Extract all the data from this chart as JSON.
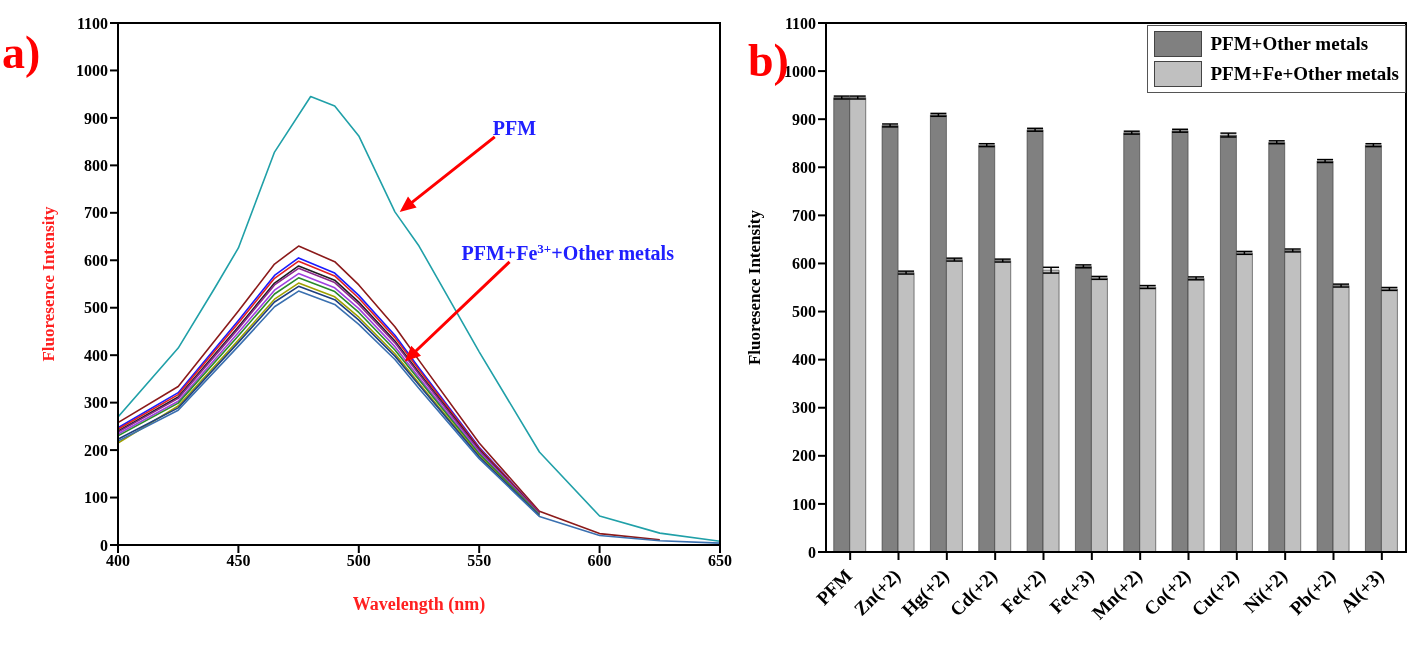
{
  "chart_data": [
    {
      "type": "line",
      "title": "a)",
      "xlabel": "Wavelength (nm)",
      "ylabel": "Fluoresence Intensity",
      "xlim": [
        400,
        650
      ],
      "xticks": [
        400,
        450,
        500,
        550,
        600,
        650
      ],
      "ylim": [
        0,
        1100
      ],
      "yticks": [
        0,
        100,
        200,
        300,
        400,
        500,
        600,
        700,
        800,
        900,
        1000,
        1100
      ],
      "x": [
        400,
        425,
        450,
        465,
        475,
        490,
        500,
        515,
        525,
        550,
        575,
        600,
        625,
        650
      ],
      "series": [
        {
          "color": "#20a0a8",
          "x": [
            400,
            425,
            440,
            450,
            465,
            480,
            490,
            500,
            515,
            525,
            550,
            575,
            600,
            625,
            650
          ],
          "values": [
            270,
            415,
            540,
            626,
            828,
            945,
            925,
            862,
            702,
            630,
            407,
            196,
            61,
            25,
            8
          ]
        },
        {
          "color": "#8b1a1a",
          "values": [
            258,
            334,
            493,
            592,
            630,
            597,
            548,
            460,
            389,
            215,
            71,
            24,
            11,
            null
          ]
        },
        {
          "color": "#1a1aff",
          "values": [
            247,
            321,
            473,
            568,
            605,
            573,
            526,
            442,
            373,
            206,
            68,
            null,
            null,
            null
          ]
        },
        {
          "color": "#e02020",
          "values": [
            244,
            317,
            468,
            562,
            598,
            567,
            520,
            437,
            369,
            204,
            68,
            null,
            null,
            null
          ]
        },
        {
          "color": "#202020",
          "values": [
            240,
            312,
            460,
            552,
            588,
            558,
            512,
            430,
            363,
            201,
            66,
            null,
            null,
            null
          ]
        },
        {
          "color": "#8b2a8b",
          "values": [
            238,
            309,
            456,
            548,
            583,
            553,
            507,
            426,
            360,
            199,
            66,
            null,
            null,
            null
          ]
        },
        {
          "color": "#a040e0",
          "values": [
            234,
            303,
            448,
            537,
            572,
            542,
            498,
            418,
            353,
            195,
            65,
            null,
            null,
            null
          ]
        },
        {
          "color": "#2a8a2a",
          "values": [
            230,
            299,
            441,
            529,
            563,
            534,
            490,
            411,
            348,
            192,
            64,
            null,
            null,
            null
          ]
        },
        {
          "color": "#a0a000",
          "values": [
            215,
            293,
            432,
            518,
            552,
            523,
            480,
            403,
            341,
            188,
            62,
            null,
            null,
            null
          ]
        },
        {
          "color": "#1f3f7f",
          "values": [
            223,
            289,
            427,
            512,
            545,
            517,
            474,
            398,
            337,
            186,
            62,
            null,
            null,
            null
          ]
        },
        {
          "color": "#3a70b0",
          "values": [
            219,
            284,
            419,
            502,
            535,
            507,
            465,
            391,
            330,
            182,
            60,
            20,
            9,
            4
          ]
        }
      ],
      "annotations": [
        "PFM",
        "PFM+Fe$^{3+}$+Other metals"
      ]
    },
    {
      "type": "bar",
      "title": "b)",
      "ylabel": "Fluoresence Intensity",
      "ylim": [
        0,
        1100
      ],
      "yticks": [
        0,
        100,
        200,
        300,
        400,
        500,
        600,
        700,
        800,
        900,
        1000,
        1100
      ],
      "legend": "top right",
      "categories": [
        "PFM",
        "Zn(+2)",
        "Hg(+2)",
        "Cd(+2)",
        "Fe(+2)",
        "Fe(+3)",
        "Mn(+2)",
        "Co(+2)",
        "Cu(+2)",
        "Ni(+2)",
        "Pb(+2)",
        "Al(+3)"
      ],
      "series": [
        {
          "name": "PFM+Other metals",
          "color": "#808080",
          "values": [
            945,
            887,
            909,
            846,
            878,
            594,
            872,
            876,
            867,
            852,
            813,
            846
          ],
          "errors": [
            3,
            3,
            3,
            3,
            3,
            3,
            3,
            3,
            4,
            3,
            3,
            3
          ]
        },
        {
          "name": "PFM+Fe+Other metals",
          "color": "#c0c0c0",
          "values": [
            945,
            581,
            608,
            606,
            586,
            570,
            551,
            569,
            622,
            627,
            554,
            547
          ],
          "errors": [
            3,
            3,
            3,
            3,
            6,
            3,
            3,
            3,
            3,
            3,
            3,
            3
          ]
        }
      ]
    }
  ]
}
